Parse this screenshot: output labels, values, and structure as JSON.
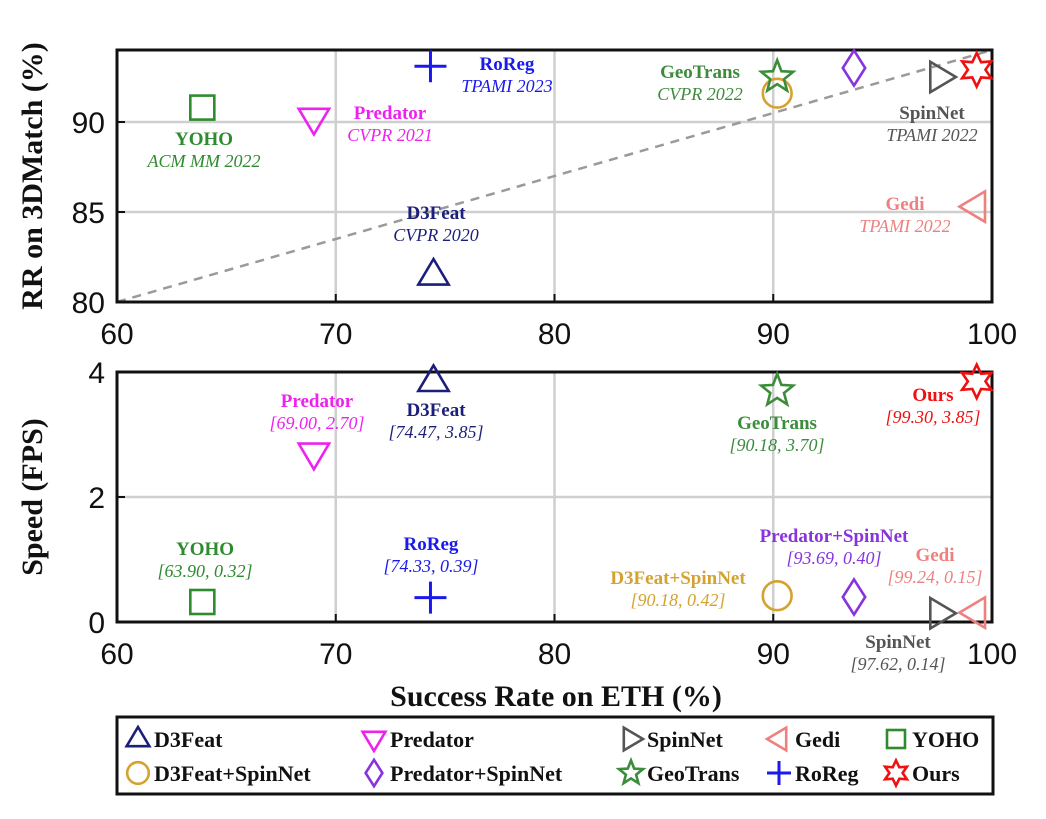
{
  "chart_data": {
    "type": "scatter",
    "colors": {
      "D3Feat": "#1b1f7a",
      "Predator": "#ee22ee",
      "SpinNet": "#555555",
      "Gedi": "#ee8080",
      "YOHO": "#2e8b2e",
      "D3Feat+SpinNet": "#d4a230",
      "Predator+SpinNet": "#8833dd",
      "GeoTrans": "#3c8c3c",
      "RoReg": "#1a1aee",
      "Ours": "#ee1111"
    },
    "markers": {
      "D3Feat": "triangle-up",
      "Predator": "triangle-down",
      "SpinNet": "triangle-right",
      "Gedi": "triangle-left",
      "YOHO": "square",
      "D3Feat+SpinNet": "circle",
      "Predator+SpinNet": "diamond",
      "GeoTrans": "star5",
      "RoReg": "plus",
      "Ours": "star6"
    },
    "xlabel": "Success Rate on ETH (%)",
    "legend": {
      "placement": "bottom",
      "rows": [
        [
          "D3Feat",
          "Predator",
          "SpinNet",
          "Gedi",
          "YOHO"
        ],
        [
          "D3Feat+SpinNet",
          "Predator+SpinNet",
          "GeoTrans",
          "RoReg",
          "Ours"
        ]
      ]
    },
    "panels": [
      {
        "name": "top",
        "ylabel": "RR on 3DMatch (%)",
        "xlim": [
          60,
          100
        ],
        "ylim": [
          80,
          94
        ],
        "xticks": [
          60,
          70,
          80,
          90,
          100
        ],
        "yticks": [
          80,
          85,
          90
        ],
        "grid": true,
        "reference_line": {
          "x": [
            60,
            100
          ],
          "y": [
            80,
            94
          ],
          "style": "dashed"
        },
        "points": [
          {
            "method": "YOHO",
            "x": 63.9,
            "y": 90.8
          },
          {
            "method": "Predator",
            "x": 69.0,
            "y": 90.2
          },
          {
            "method": "D3Feat",
            "x": 74.47,
            "y": 81.5
          },
          {
            "method": "RoReg",
            "x": 74.33,
            "y": 93.1
          },
          {
            "method": "D3Feat+SpinNet",
            "x": 90.18,
            "y": 91.6
          },
          {
            "method": "GeoTrans",
            "x": 90.18,
            "y": 92.5
          },
          {
            "method": "Predator+SpinNet",
            "x": 93.69,
            "y": 93.0
          },
          {
            "method": "SpinNet",
            "x": 97.62,
            "y": 92.5
          },
          {
            "method": "Gedi",
            "x": 99.24,
            "y": 85.3
          },
          {
            "method": "Ours",
            "x": 99.3,
            "y": 92.9
          }
        ],
        "annotations": [
          {
            "color": "YOHO",
            "name": "YOHO",
            "sub": "ACM MM 2022"
          },
          {
            "color": "Predator",
            "name": "Predator",
            "sub": "CVPR 2021"
          },
          {
            "color": "D3Feat",
            "name": "D3Feat",
            "sub": "CVPR 2020"
          },
          {
            "color": "RoReg",
            "name": "RoReg",
            "sub": "TPAMI 2023"
          },
          {
            "color": "GeoTrans",
            "name": "GeoTrans",
            "sub": "CVPR 2022"
          },
          {
            "color": "SpinNet",
            "name": "SpinNet",
            "sub": "TPAMI 2022"
          },
          {
            "color": "Gedi",
            "name": "Gedi",
            "sub": "TPAMI 2022"
          }
        ]
      },
      {
        "name": "bottom",
        "ylabel": "Speed (FPS)",
        "xlim": [
          60,
          100
        ],
        "ylim": [
          0,
          4
        ],
        "xticks": [
          60,
          70,
          80,
          90,
          100
        ],
        "yticks": [
          0,
          2,
          4
        ],
        "grid": true,
        "points": [
          {
            "method": "YOHO",
            "x": 63.9,
            "y": 0.32
          },
          {
            "method": "Predator",
            "x": 69.0,
            "y": 2.7
          },
          {
            "method": "D3Feat",
            "x": 74.47,
            "y": 3.85
          },
          {
            "method": "RoReg",
            "x": 74.33,
            "y": 0.39
          },
          {
            "method": "D3Feat+SpinNet",
            "x": 90.18,
            "y": 0.42
          },
          {
            "method": "GeoTrans",
            "x": 90.18,
            "y": 3.7
          },
          {
            "method": "Predator+SpinNet",
            "x": 93.69,
            "y": 0.4
          },
          {
            "method": "SpinNet",
            "x": 97.62,
            "y": 0.14
          },
          {
            "method": "Gedi",
            "x": 99.24,
            "y": 0.15
          },
          {
            "method": "Ours",
            "x": 99.3,
            "y": 3.85
          }
        ],
        "annotations": [
          {
            "color": "Predator",
            "name": "Predator",
            "sub": "[69.00, 2.70]"
          },
          {
            "color": "D3Feat",
            "name": "D3Feat",
            "sub": "[74.47, 3.85]"
          },
          {
            "color": "GeoTrans",
            "name": "GeoTrans",
            "sub": "[90.18, 3.70]"
          },
          {
            "color": "Ours",
            "name": "Ours",
            "sub": "[99.30, 3.85]"
          },
          {
            "color": "YOHO",
            "name": "YOHO",
            "sub": "[63.90, 0.32]"
          },
          {
            "color": "RoReg",
            "name": "RoReg",
            "sub": "[74.33, 0.39]"
          },
          {
            "color": "Predator+SpinNet",
            "name": "Predator+SpinNet",
            "sub": "[93.69, 0.40]"
          },
          {
            "color": "D3Feat+SpinNet",
            "name": "D3Feat+SpinNet",
            "sub": "[90.18, 0.42]"
          },
          {
            "color": "Gedi",
            "name": "Gedi",
            "sub": "[99.24, 0.15]"
          },
          {
            "color": "SpinNet",
            "name": "SpinNet",
            "sub": "[97.62, 0.14]"
          }
        ]
      }
    ]
  }
}
